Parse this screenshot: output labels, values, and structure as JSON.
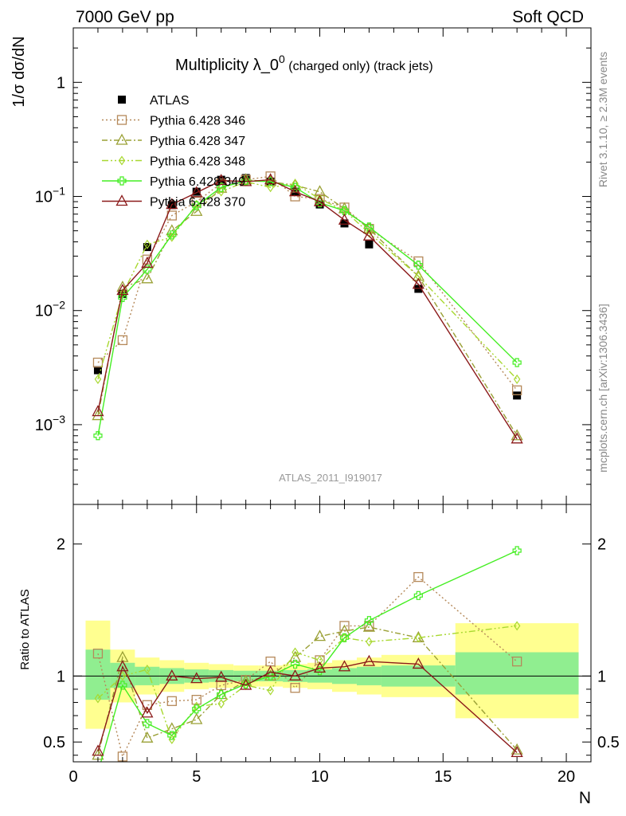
{
  "header": {
    "left": "7000 GeV pp",
    "right": "Soft QCD"
  },
  "side_text": {
    "rivet": "Rivet 3.1.10, ≥ 2.3M events",
    "mcplots": "mcplots.cern.ch [arXiv:1306.3436]"
  },
  "chart_data": [
    {
      "type": "line",
      "panel": "main",
      "title": "Multiplicity λ_0⁰ (charged only) (track jets)",
      "title_main": "Multiplicity λ_0",
      "title_sup": "0",
      "title_rest": " (charged only) (track jets)",
      "analysis": "ATLAS_2011_I919017",
      "ylabel": "1/σ dσ/dN",
      "y_scale": "log",
      "xlim": [
        0,
        21
      ],
      "ylim": [
        0.0002,
        3.0
      ],
      "legend_position": "top-left",
      "y_ticks": [
        {
          "value": 0.001,
          "base": "10",
          "exp": "−3"
        },
        {
          "value": 0.01,
          "base": "10",
          "exp": "−2"
        },
        {
          "value": 0.1,
          "base": "10",
          "exp": "−1"
        },
        {
          "value": 1,
          "base": "1",
          "exp": ""
        }
      ],
      "series": [
        {
          "name": "ATLAS",
          "color": "#000000",
          "marker": "filled-square",
          "dash": "none",
          "x": [
            1,
            2,
            3,
            4,
            5,
            6,
            7,
            8,
            9,
            10,
            11,
            12,
            14,
            18
          ],
          "y": [
            0.003,
            0.014,
            0.036,
            0.084,
            0.11,
            0.14,
            0.145,
            0.135,
            0.11,
            0.085,
            0.058,
            0.038,
            0.0155,
            0.0018
          ]
        },
        {
          "name": "Pythia 6.428 346",
          "color": "#b5895a",
          "marker": "open-square",
          "dash": "2,3",
          "x": [
            1,
            2,
            3,
            4,
            5,
            6,
            7,
            8,
            9,
            10,
            11,
            12,
            14,
            18
          ],
          "y": [
            0.0035,
            0.0055,
            0.028,
            0.068,
            0.09,
            0.13,
            0.14,
            0.15,
            0.1,
            0.095,
            0.08,
            0.052,
            0.027,
            0.002
          ]
        },
        {
          "name": "Pythia 6.428 347",
          "color": "#9aa035",
          "marker": "open-triangle",
          "dash": "7,3,2,3",
          "x": [
            1,
            2,
            3,
            4,
            5,
            6,
            7,
            8,
            9,
            10,
            11,
            12,
            14,
            18
          ],
          "y": [
            0.0012,
            0.016,
            0.019,
            0.05,
            0.074,
            0.118,
            0.14,
            0.135,
            0.125,
            0.11,
            0.078,
            0.052,
            0.02,
            0.0008
          ]
        },
        {
          "name": "Pythia 6.428 348",
          "color": "#a8d830",
          "marker": "open-diamond",
          "dash": "8,3,2,3,2,3",
          "x": [
            1,
            2,
            3,
            4,
            5,
            6,
            7,
            8,
            9,
            10,
            11,
            12,
            14,
            18
          ],
          "y": [
            0.0025,
            0.014,
            0.038,
            0.044,
            0.085,
            0.11,
            0.135,
            0.12,
            0.13,
            0.095,
            0.075,
            0.048,
            0.02,
            0.0025
          ]
        },
        {
          "name": "Pythia 6.428 349",
          "color": "#44ee22",
          "marker": "open-cross",
          "dash": "none",
          "x": [
            1,
            2,
            3,
            4,
            5,
            6,
            7,
            8,
            9,
            10,
            11,
            12,
            14,
            18
          ],
          "y": [
            0.0008,
            0.013,
            0.023,
            0.046,
            0.083,
            0.12,
            0.137,
            0.135,
            0.12,
            0.088,
            0.075,
            0.054,
            0.025,
            0.0035
          ]
        },
        {
          "name": "Pythia 6.428 370",
          "color": "#8b1a1a",
          "marker": "open-triangle",
          "dash": "none",
          "x": [
            1,
            2,
            3,
            4,
            5,
            6,
            7,
            8,
            9,
            10,
            11,
            12,
            14,
            18
          ],
          "y": [
            0.0013,
            0.015,
            0.026,
            0.085,
            0.108,
            0.138,
            0.135,
            0.14,
            0.11,
            0.09,
            0.062,
            0.045,
            0.017,
            0.00075
          ]
        }
      ]
    },
    {
      "type": "line",
      "panel": "ratio",
      "ylabel": "Ratio to ATLAS",
      "xlabel": "N",
      "xlim": [
        0,
        21
      ],
      "ylim": [
        0.35,
        2.3
      ],
      "x_ticks": [
        0,
        5,
        10,
        15,
        20
      ],
      "y_ticks": [
        0.5,
        1,
        2
      ],
      "y_tick_labels": [
        "0.5",
        "1",
        "2"
      ],
      "reference_line": 1,
      "band_inner_color": "#90ee90",
      "band_outer_color": "#ffff90",
      "bands": [
        {
          "x0": 0.5,
          "x1": 1.5,
          "inner": [
            0.82,
            1.2
          ],
          "outer": [
            0.6,
            1.42
          ]
        },
        {
          "x0": 1.5,
          "x1": 2.5,
          "inner": [
            0.91,
            1.1
          ],
          "outer": [
            0.8,
            1.2
          ]
        },
        {
          "x0": 2.5,
          "x1": 3.5,
          "inner": [
            0.93,
            1.07
          ],
          "outer": [
            0.86,
            1.14
          ]
        },
        {
          "x0": 3.5,
          "x1": 4.5,
          "inner": [
            0.94,
            1.06
          ],
          "outer": [
            0.88,
            1.12
          ]
        },
        {
          "x0": 4.5,
          "x1": 5.5,
          "inner": [
            0.95,
            1.05
          ],
          "outer": [
            0.9,
            1.1
          ]
        },
        {
          "x0": 5.5,
          "x1": 6.5,
          "inner": [
            0.955,
            1.045
          ],
          "outer": [
            0.91,
            1.09
          ]
        },
        {
          "x0": 6.5,
          "x1": 7.5,
          "inner": [
            0.96,
            1.04
          ],
          "outer": [
            0.92,
            1.08
          ]
        },
        {
          "x0": 7.5,
          "x1": 8.5,
          "inner": [
            0.96,
            1.04
          ],
          "outer": [
            0.92,
            1.08
          ]
        },
        {
          "x0": 8.5,
          "x1": 9.5,
          "inner": [
            0.955,
            1.045
          ],
          "outer": [
            0.91,
            1.09
          ]
        },
        {
          "x0": 9.5,
          "x1": 10.5,
          "inner": [
            0.95,
            1.05
          ],
          "outer": [
            0.9,
            1.1
          ]
        },
        {
          "x0": 10.5,
          "x1": 11.5,
          "inner": [
            0.94,
            1.06
          ],
          "outer": [
            0.88,
            1.12
          ]
        },
        {
          "x0": 11.5,
          "x1": 12.5,
          "inner": [
            0.93,
            1.07
          ],
          "outer": [
            0.86,
            1.14
          ]
        },
        {
          "x0": 12.5,
          "x1": 15.5,
          "inner": [
            0.92,
            1.08
          ],
          "outer": [
            0.84,
            1.16
          ]
        },
        {
          "x0": 15.5,
          "x1": 20.5,
          "inner": [
            0.86,
            1.18
          ],
          "outer": [
            0.68,
            1.4
          ]
        }
      ],
      "series": [
        {
          "name": "Pythia 6.428 346",
          "color": "#b5895a",
          "marker": "open-square",
          "dash": "2,3",
          "x": [
            1,
            2,
            3,
            4,
            5,
            6,
            7,
            8,
            9,
            10,
            11,
            12,
            14,
            18
          ],
          "y": [
            1.17,
            0.39,
            0.78,
            0.81,
            0.82,
            0.93,
            0.97,
            1.11,
            0.91,
            1.12,
            1.38,
            1.38,
            1.75,
            1.11
          ]
        },
        {
          "name": "Pythia 6.428 347",
          "color": "#9aa035",
          "marker": "open-triangle",
          "dash": "7,3,2,3",
          "x": [
            1,
            2,
            3,
            4,
            5,
            6,
            7,
            8,
            9,
            10,
            11,
            12,
            14,
            18
          ],
          "y": [
            0.4,
            1.14,
            0.53,
            0.6,
            0.67,
            0.86,
            0.96,
            1.0,
            1.14,
            1.3,
            1.34,
            1.37,
            1.29,
            0.44
          ]
        },
        {
          "name": "Pythia 6.428 348",
          "color": "#a8d830",
          "marker": "open-diamond",
          "dash": "8,3,2,3,2,3",
          "x": [
            1,
            2,
            3,
            4,
            5,
            6,
            7,
            8,
            9,
            10,
            11,
            12,
            14,
            18
          ],
          "y": [
            0.83,
            1.0,
            1.05,
            0.52,
            0.77,
            0.79,
            0.93,
            0.89,
            1.18,
            1.12,
            1.29,
            1.26,
            1.29,
            1.38
          ]
        },
        {
          "name": "Pythia 6.428 349",
          "color": "#44ee22",
          "marker": "open-cross",
          "dash": "none",
          "x": [
            1,
            2,
            3,
            4,
            5,
            6,
            7,
            8,
            9,
            10,
            11,
            12,
            14,
            18
          ],
          "y": [
            0.27,
            0.93,
            0.64,
            0.55,
            0.75,
            0.86,
            0.94,
            1.0,
            1.09,
            1.04,
            1.29,
            1.42,
            1.61,
            1.95
          ]
        },
        {
          "name": "Pythia 6.428 370",
          "color": "#8b1a1a",
          "marker": "open-triangle",
          "dash": "none",
          "x": [
            1,
            2,
            3,
            4,
            5,
            6,
            7,
            8,
            9,
            10,
            11,
            12,
            14,
            18
          ],
          "y": [
            0.43,
            1.07,
            0.72,
            1.0,
            0.98,
            0.99,
            0.93,
            1.03,
            1.0,
            1.06,
            1.07,
            1.11,
            1.09,
            0.42
          ]
        }
      ]
    }
  ]
}
